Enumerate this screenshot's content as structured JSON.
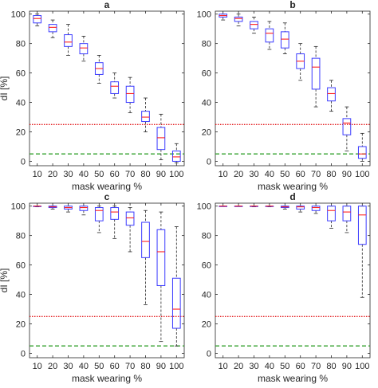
{
  "figure": {
    "xlabel": "mask wearing %",
    "ylabel": "dI [%]"
  },
  "chart_data": [
    {
      "type": "box",
      "title": "a",
      "xlabel": "mask wearing %",
      "ylabel": "dI [%]",
      "categories": [
        "10",
        "20",
        "30",
        "40",
        "50",
        "60",
        "70",
        "80",
        "90",
        "100"
      ],
      "ylim": [
        -3,
        102
      ],
      "yticks": [
        0,
        20,
        40,
        60,
        80,
        100
      ],
      "reference_lines": [
        {
          "y": 25,
          "color": "#e31a1c",
          "style": "dotted"
        },
        {
          "y": 5,
          "color": "#33a02c",
          "style": "dashed"
        }
      ],
      "boxes": [
        {
          "min": 92,
          "q1": 94,
          "median": 97,
          "q3": 99,
          "max": 100
        },
        {
          "min": 84,
          "q1": 88,
          "median": 91,
          "q3": 93,
          "max": 96
        },
        {
          "min": 72,
          "q1": 78,
          "median": 81,
          "q3": 86,
          "max": 93
        },
        {
          "min": 68,
          "q1": 73,
          "median": 77,
          "q3": 80,
          "max": 85
        },
        {
          "min": 53,
          "q1": 59,
          "median": 63,
          "q3": 67,
          "max": 72
        },
        {
          "min": 43,
          "q1": 46,
          "median": 51,
          "q3": 54,
          "max": 60
        },
        {
          "min": 33,
          "q1": 40,
          "median": 46,
          "q3": 51,
          "max": 57
        },
        {
          "min": 20,
          "q1": 27,
          "median": 30,
          "q3": 34,
          "max": 43
        },
        {
          "min": 1,
          "q1": 8,
          "median": 16,
          "q3": 23,
          "max": 32
        },
        {
          "min": -1,
          "q1": 0,
          "median": 3,
          "q3": 7,
          "max": 12
        }
      ]
    },
    {
      "type": "box",
      "title": "b",
      "xlabel": "mask wearing %",
      "ylabel": "",
      "categories": [
        "10",
        "20",
        "30",
        "40",
        "50",
        "60",
        "70",
        "80",
        "90",
        "100"
      ],
      "ylim": [
        -3,
        102
      ],
      "yticks": [
        0,
        20,
        40,
        60,
        80,
        100
      ],
      "reference_lines": [
        {
          "y": 25,
          "color": "#e31a1c",
          "style": "dotted"
        },
        {
          "y": 5,
          "color": "#33a02c",
          "style": "dashed"
        }
      ],
      "boxes": [
        {
          "min": 96,
          "q1": 98,
          "median": 99,
          "q3": 100,
          "max": 100
        },
        {
          "min": 92,
          "q1": 95,
          "median": 97,
          "q3": 98,
          "max": 100
        },
        {
          "min": 87,
          "q1": 90,
          "median": 93,
          "q3": 95,
          "max": 98
        },
        {
          "min": 76,
          "q1": 81,
          "median": 87,
          "q3": 90,
          "max": 95
        },
        {
          "min": 73,
          "q1": 77,
          "median": 83,
          "q3": 88,
          "max": 94
        },
        {
          "min": 55,
          "q1": 63,
          "median": 68,
          "q3": 73,
          "max": 80
        },
        {
          "min": 37,
          "q1": 49,
          "median": 64,
          "q3": 70,
          "max": 78
        },
        {
          "min": 34,
          "q1": 41,
          "median": 46,
          "q3": 50,
          "max": 55
        },
        {
          "min": 7,
          "q1": 18,
          "median": 26,
          "q3": 29,
          "max": 37
        },
        {
          "min": 0,
          "q1": 2,
          "median": 5,
          "q3": 10,
          "max": 19
        }
      ]
    },
    {
      "type": "box",
      "title": "c",
      "xlabel": "mask wearing %",
      "ylabel": "dI [%]",
      "categories": [
        "10",
        "20",
        "30",
        "40",
        "50",
        "60",
        "70",
        "80",
        "90",
        "100"
      ],
      "ylim": [
        -3,
        102
      ],
      "yticks": [
        0,
        20,
        40,
        60,
        80,
        100
      ],
      "reference_lines": [
        {
          "y": 25,
          "color": "#e31a1c",
          "style": "dotted"
        },
        {
          "y": 5,
          "color": "#33a02c",
          "style": "dashed"
        }
      ],
      "boxes": [
        {
          "min": 99.5,
          "q1": 99.8,
          "median": 100,
          "q3": 100,
          "max": 100
        },
        {
          "min": 98,
          "q1": 99,
          "median": 99.5,
          "q3": 100,
          "max": 100
        },
        {
          "min": 96,
          "q1": 98,
          "median": 99,
          "q3": 100,
          "max": 100
        },
        {
          "min": 94,
          "q1": 97,
          "median": 99,
          "q3": 100,
          "max": 100
        },
        {
          "min": 82,
          "q1": 90,
          "median": 97,
          "q3": 99,
          "max": 100
        },
        {
          "min": 78,
          "q1": 91,
          "median": 96,
          "q3": 99,
          "max": 100
        },
        {
          "min": 69,
          "q1": 87,
          "median": 92,
          "q3": 96,
          "max": 99
        },
        {
          "min": 33,
          "q1": 65,
          "median": 76,
          "q3": 89,
          "max": 97
        },
        {
          "min": 8,
          "q1": 46,
          "median": 69,
          "q3": 84,
          "max": 96
        },
        {
          "min": 5,
          "q1": 17,
          "median": 30,
          "q3": 51,
          "max": 86
        }
      ]
    },
    {
      "type": "box",
      "title": "d",
      "xlabel": "mask wearing %",
      "ylabel": "",
      "categories": [
        "10",
        "20",
        "30",
        "40",
        "50",
        "60",
        "70",
        "80",
        "90",
        "100"
      ],
      "ylim": [
        -3,
        102
      ],
      "yticks": [
        0,
        20,
        40,
        60,
        80,
        100
      ],
      "reference_lines": [
        {
          "y": 25,
          "color": "#e31a1c",
          "style": "dotted"
        },
        {
          "y": 5,
          "color": "#33a02c",
          "style": "dashed"
        }
      ],
      "boxes": [
        {
          "min": 100,
          "q1": 100,
          "median": 100,
          "q3": 100,
          "max": 100
        },
        {
          "min": 100,
          "q1": 100,
          "median": 100,
          "q3": 100,
          "max": 100
        },
        {
          "min": 99.5,
          "q1": 99.8,
          "median": 100,
          "q3": 100,
          "max": 100
        },
        {
          "min": 99.5,
          "q1": 99.8,
          "median": 100,
          "q3": 100,
          "max": 100
        },
        {
          "min": 98,
          "q1": 99,
          "median": 99.5,
          "q3": 100,
          "max": 100
        },
        {
          "min": 96,
          "q1": 98,
          "median": 99.5,
          "q3": 100,
          "max": 100
        },
        {
          "min": 95,
          "q1": 97,
          "median": 99,
          "q3": 100,
          "max": 100
        },
        {
          "min": 85,
          "q1": 90,
          "median": 97,
          "q3": 100,
          "max": 100
        },
        {
          "min": 82,
          "q1": 90,
          "median": 96,
          "q3": 100,
          "max": 100
        },
        {
          "min": 38,
          "q1": 74,
          "median": 94,
          "q3": 100,
          "max": 100
        }
      ]
    }
  ]
}
